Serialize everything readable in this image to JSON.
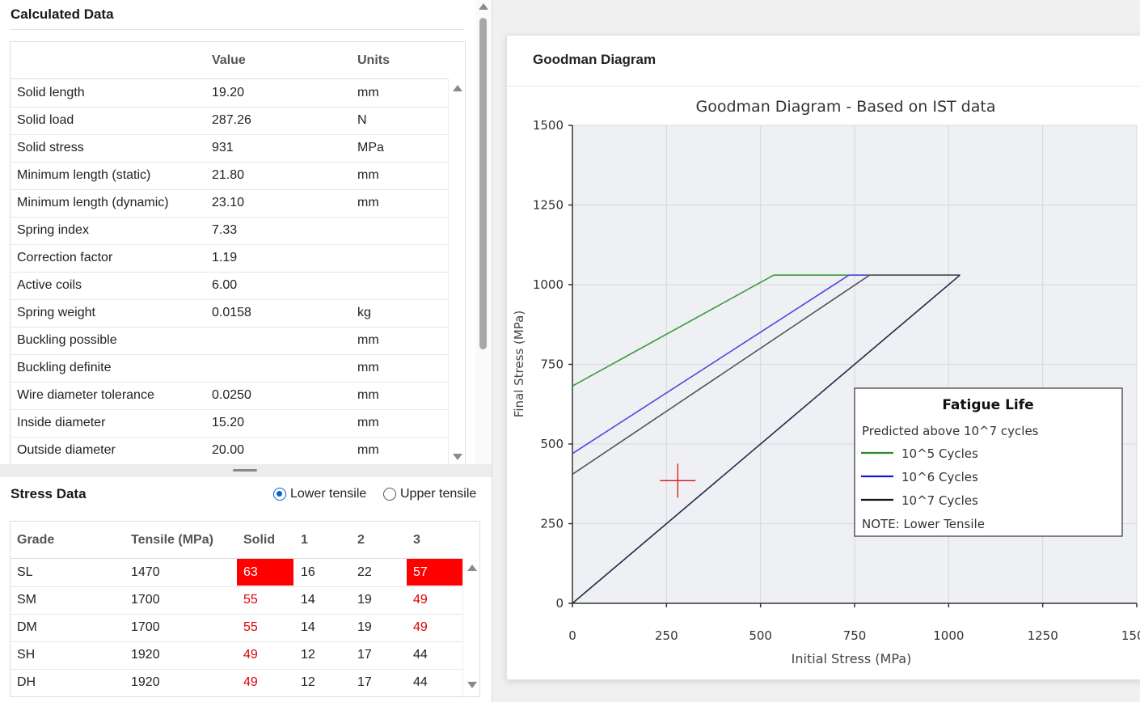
{
  "calculated": {
    "title": "Calculated Data",
    "columns": [
      "",
      "Value",
      "Units"
    ],
    "rows": [
      {
        "label": "Solid length",
        "value": "19.20",
        "unit": "mm"
      },
      {
        "label": "Solid load",
        "value": "287.26",
        "unit": "N"
      },
      {
        "label": "Solid stress",
        "value": "931",
        "unit": "MPa"
      },
      {
        "label": "Minimum length (static)",
        "value": "21.80",
        "unit": "mm"
      },
      {
        "label": "Minimum length (dynamic)",
        "value": "23.10",
        "unit": "mm"
      },
      {
        "label": "Spring index",
        "value": "7.33",
        "unit": ""
      },
      {
        "label": "Correction factor",
        "value": "1.19",
        "unit": ""
      },
      {
        "label": "Active coils",
        "value": "6.00",
        "unit": ""
      },
      {
        "label": "Spring weight",
        "value": "0.0158",
        "unit": "kg"
      },
      {
        "label": "Buckling possible",
        "value": "",
        "unit": "mm"
      },
      {
        "label": "Buckling definite",
        "value": "",
        "unit": "mm"
      },
      {
        "label": "Wire diameter tolerance",
        "value": "0.0250",
        "unit": "mm"
      },
      {
        "label": "Inside diameter",
        "value": "15.20",
        "unit": "mm"
      },
      {
        "label": "Outside diameter",
        "value": "20.00",
        "unit": "mm"
      }
    ]
  },
  "stress": {
    "title": "Stress Data",
    "radio_options": [
      {
        "label": "Lower tensile",
        "selected": true
      },
      {
        "label": "Upper tensile",
        "selected": false
      }
    ],
    "columns": [
      "Grade",
      "Tensile (MPa)",
      "Solid",
      "1",
      "2",
      "3"
    ],
    "rows": [
      {
        "grade": "SL",
        "tensile": "1470",
        "solid": "63",
        "c1": "16",
        "c2": "22",
        "c3": "57",
        "solid_state": "fill",
        "c3_state": "fill"
      },
      {
        "grade": "SM",
        "tensile": "1700",
        "solid": "55",
        "c1": "14",
        "c2": "19",
        "c3": "49",
        "solid_state": "red",
        "c3_state": "red"
      },
      {
        "grade": "DM",
        "tensile": "1700",
        "solid": "55",
        "c1": "14",
        "c2": "19",
        "c3": "49",
        "solid_state": "red",
        "c3_state": "red"
      },
      {
        "grade": "SH",
        "tensile": "1920",
        "solid": "49",
        "c1": "12",
        "c2": "17",
        "c3": "44",
        "solid_state": "red",
        "c3_state": "normal"
      },
      {
        "grade": "DH",
        "tensile": "1920",
        "solid": "49",
        "c1": "12",
        "c2": "17",
        "c3": "44",
        "solid_state": "red",
        "c3_state": "normal"
      }
    ],
    "colors": {
      "warning": "#e00000",
      "fill": "#ff0000"
    }
  },
  "chart_card": {
    "title": "Goodman Diagram"
  },
  "chart_data": {
    "type": "line",
    "title": "Goodman Diagram - Based on IST data",
    "xlabel": "Initial Stress (MPa)",
    "ylabel": "Final Stress (MPa)",
    "xlim": [
      0,
      1500
    ],
    "ylim": [
      0,
      1500
    ],
    "xticks": [
      0,
      250,
      500,
      750,
      1000,
      1250,
      1500
    ],
    "yticks": [
      0,
      250,
      500,
      750,
      1000,
      1250,
      1500
    ],
    "grid": true,
    "series": [
      {
        "name": "10^5 Cycles",
        "color": "#3a9a3a",
        "x": [
          0,
          535,
          1030
        ],
        "y": [
          682,
          1030,
          1030
        ]
      },
      {
        "name": "10^6 Cycles",
        "color": "#4a4ae0",
        "x": [
          0,
          735,
          1030
        ],
        "y": [
          470,
          1030,
          1030
        ]
      },
      {
        "name": "10^7 Cycles",
        "color": "#555555",
        "x": [
          0,
          790,
          1030
        ],
        "y": [
          405,
          1030,
          1030
        ]
      },
      {
        "name": "",
        "color": "#1e2a4a",
        "x": [
          0,
          1030,
          1030
        ],
        "y": [
          0,
          1030,
          1030
        ]
      }
    ],
    "marker": {
      "x": 280,
      "y": 385,
      "color": "#e01010"
    },
    "legend": {
      "title": "Fatigue Life",
      "subtitle": "Predicted above 10^7 cycles",
      "entries": [
        {
          "label": "10^5 Cycles",
          "color": "#2e8b2e"
        },
        {
          "label": "10^6 Cycles",
          "color": "#1a1ad0"
        },
        {
          "label": "10^7 Cycles",
          "color": "#111111"
        }
      ],
      "note": "NOTE: Lower Tensile",
      "placement": "lower-right"
    }
  }
}
